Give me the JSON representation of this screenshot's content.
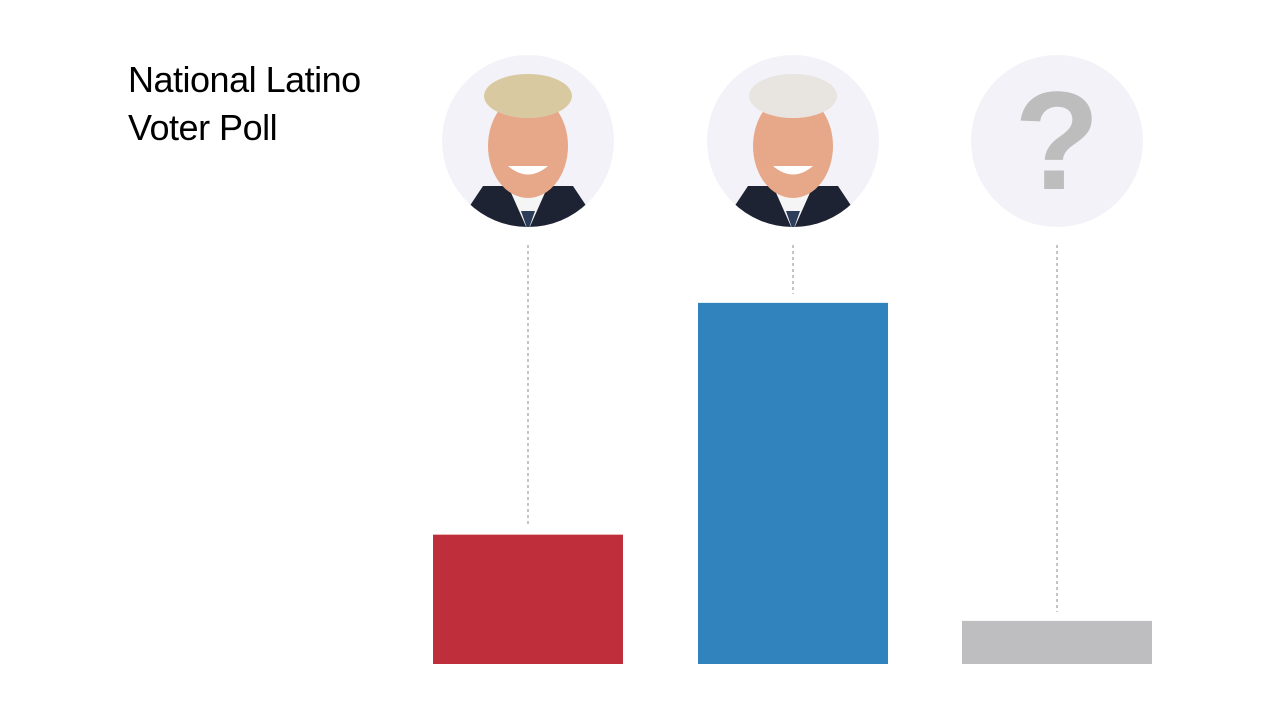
{
  "chart_data": {
    "type": "bar",
    "title": "National Latino Voter Poll",
    "categories": [
      "",
      "",
      ""
    ],
    "values": [
      24,
      67,
      8
    ],
    "icons": [
      "trump-portrait",
      "biden-portrait",
      "question-mark-icon"
    ],
    "colors": [
      "#BE2F3B",
      "#3183BE",
      "#BEBEC0"
    ],
    "ylim": [
      0,
      78
    ],
    "grid": false,
    "legend": "none"
  }
}
